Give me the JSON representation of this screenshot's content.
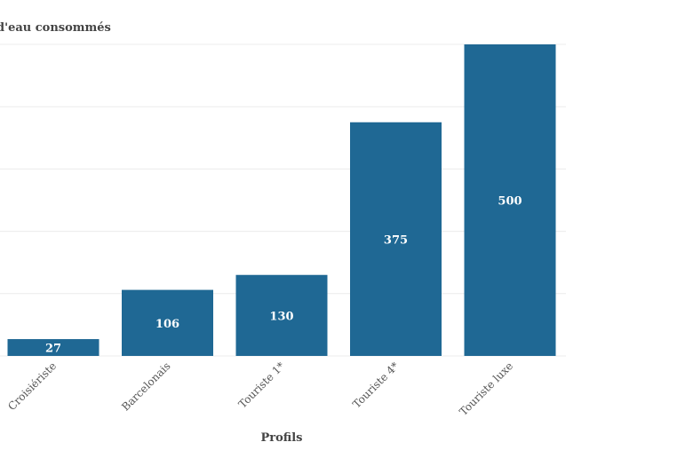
{
  "chart_data": {
    "type": "bar",
    "ylabel": "d'eau consommés",
    "xlabel": "Profils",
    "categories": [
      "Croisiériste",
      "Barcelonais",
      "Touriste 1*",
      "Touriste 4*",
      "Touriste luxe"
    ],
    "values": [
      27,
      106,
      130,
      375,
      500
    ],
    "ylim": [
      0,
      500
    ],
    "grid": true,
    "legend": "none",
    "bar_color": "#1f6894"
  }
}
